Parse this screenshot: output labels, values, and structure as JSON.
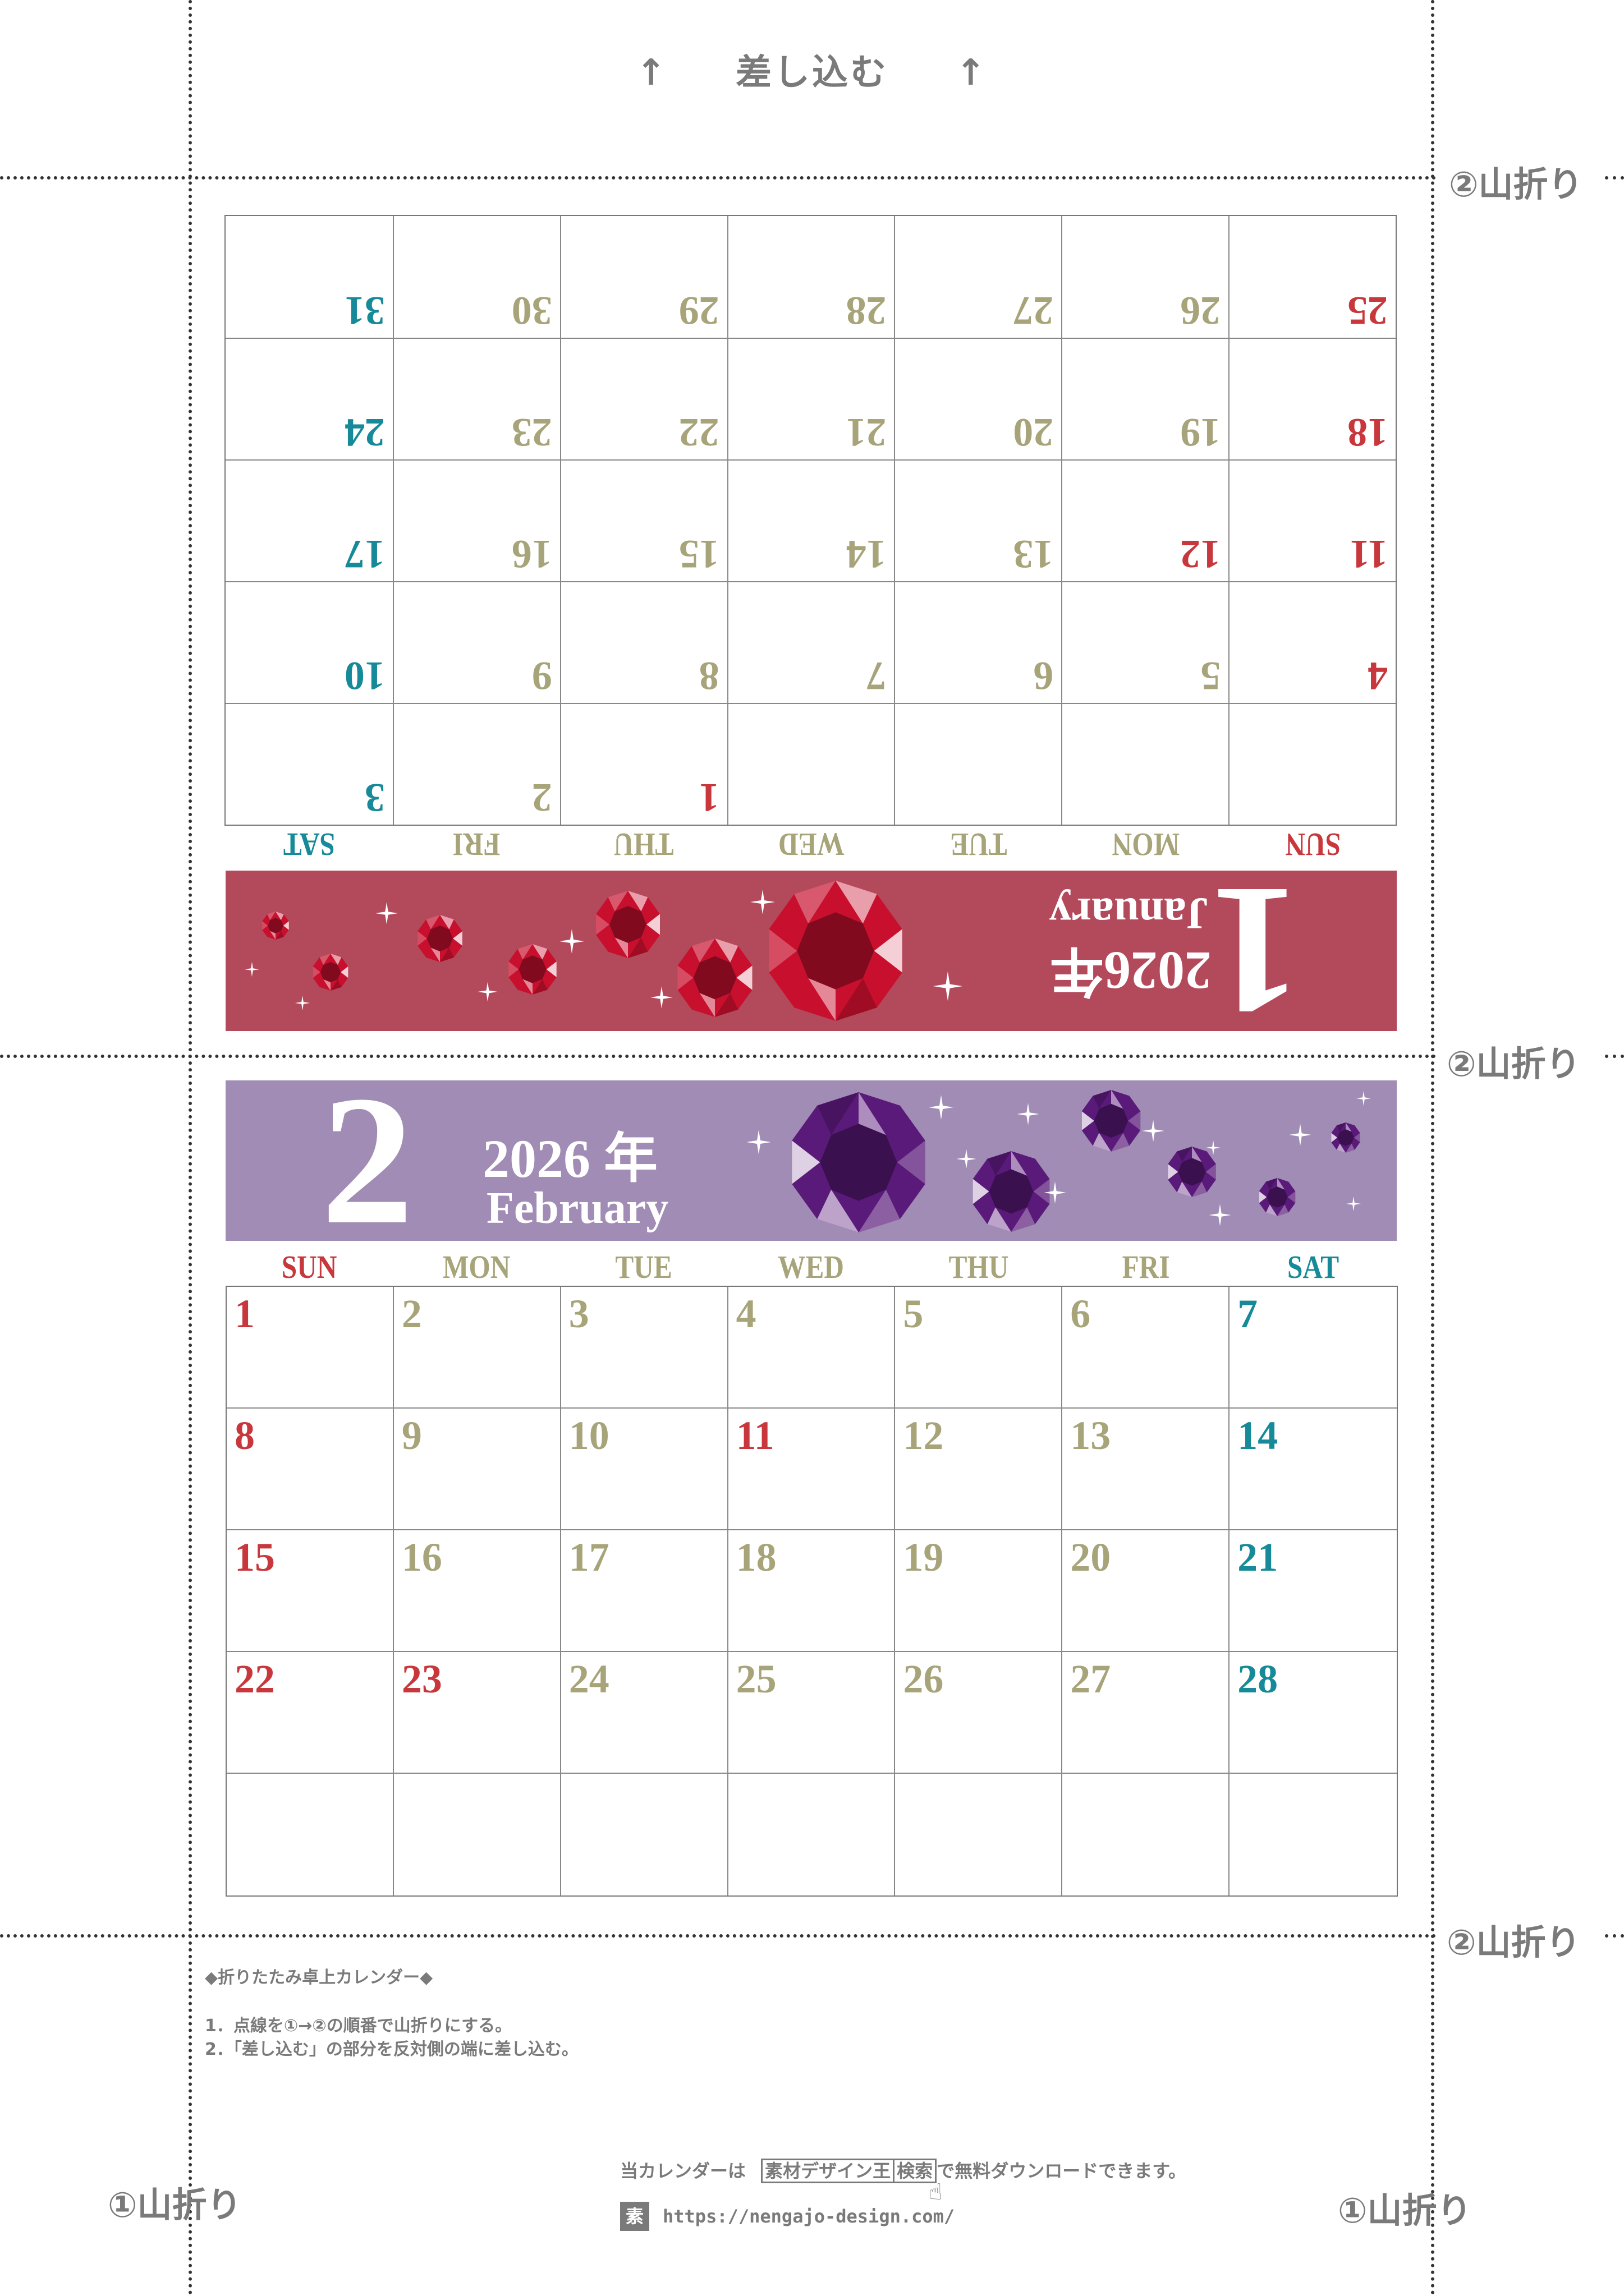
{
  "insert_label": "差し込む",
  "insert_arrow": "↑",
  "fold_labels": {
    "second": "②山折り",
    "first": "①山折り"
  },
  "colors": {
    "sunday": "#c8373c",
    "weekday": "#a8a47a",
    "saturday": "#168a98",
    "jan_banner": "#b24a5c",
    "feb_banner": "#a08cb4",
    "ruby": "#c8102e",
    "amethyst": "#5a1a7a",
    "text_gray": "#7a7a7a"
  },
  "weekdays": [
    "SUN",
    "MON",
    "TUE",
    "WED",
    "THU",
    "FRI",
    "SAT"
  ],
  "months": [
    {
      "number": "1",
      "year": "2026年",
      "name": "January",
      "holidays": [
        1,
        12
      ],
      "weeks": [
        [
          null,
          null,
          null,
          null,
          1,
          2,
          3
        ],
        [
          4,
          5,
          6,
          7,
          8,
          9,
          10
        ],
        [
          11,
          12,
          13,
          14,
          15,
          16,
          17
        ],
        [
          18,
          19,
          20,
          21,
          22,
          23,
          24
        ],
        [
          25,
          26,
          27,
          28,
          29,
          30,
          31
        ]
      ]
    },
    {
      "number": "2",
      "year": "2026 年",
      "name": "February",
      "holidays": [
        11,
        23
      ],
      "weeks": [
        [
          1,
          2,
          3,
          4,
          5,
          6,
          7
        ],
        [
          8,
          9,
          10,
          11,
          12,
          13,
          14
        ],
        [
          15,
          16,
          17,
          18,
          19,
          20,
          21
        ],
        [
          22,
          23,
          24,
          25,
          26,
          27,
          28
        ],
        [
          null,
          null,
          null,
          null,
          null,
          null,
          null
        ]
      ]
    }
  ],
  "instructions": {
    "title": "◆折りたたみ卓上カレンダー◆",
    "steps": [
      "1．点線を①→②の順番で山折りにする。",
      "2．「差し込む」の部分を反対側の端に差し込む。"
    ]
  },
  "footer": {
    "prefix": "当カレンダーは",
    "search_term": "素材デザイン王",
    "search_button": "検索",
    "suffix": "で無料ダウンロードできます。",
    "logo_char": "素",
    "url": "https://nengajo-design.com/"
  }
}
